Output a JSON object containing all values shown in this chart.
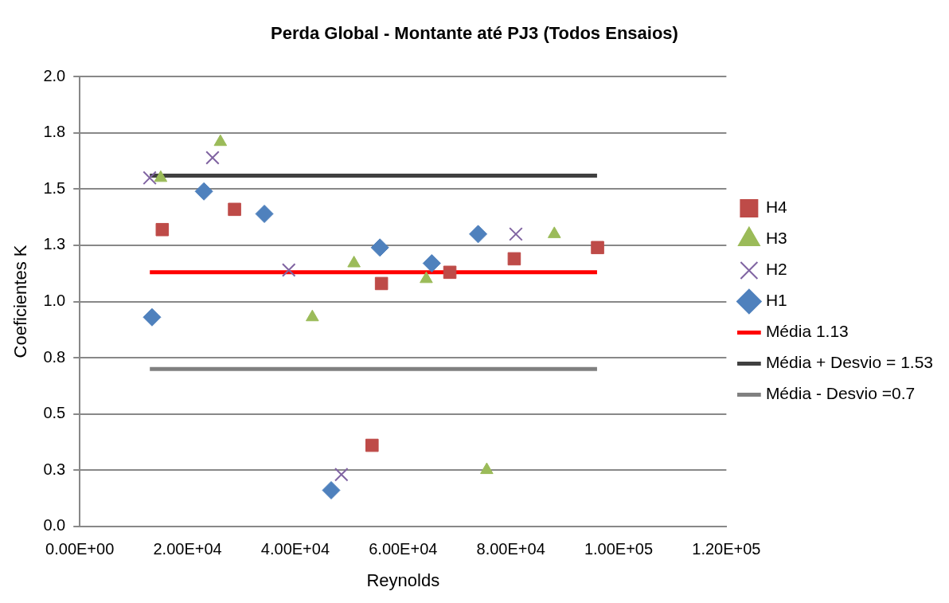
{
  "chart_data": {
    "type": "scatter",
    "title": "Perda Global - Montante até PJ3 (Todos Ensaios)",
    "xlabel": "Reynolds",
    "ylabel": "Coeficientes K",
    "xlim": [
      0,
      120000
    ],
    "xticks": [
      {
        "value": 0,
        "label": "0.00E+00"
      },
      {
        "value": 20000,
        "label": "2.00E+04"
      },
      {
        "value": 40000,
        "label": "4.00E+04"
      },
      {
        "value": 60000,
        "label": "6.00E+04"
      },
      {
        "value": 80000,
        "label": "8.00E+04"
      },
      {
        "value": 100000,
        "label": "1.00E+05"
      },
      {
        "value": 120000,
        "label": "1.20E+05"
      }
    ],
    "ylim": [
      0,
      2
    ],
    "yticks": [
      {
        "value": 0,
        "label": "0.0"
      },
      {
        "value": 0.25,
        "label": "0.3"
      },
      {
        "value": 0.5,
        "label": "0.5"
      },
      {
        "value": 0.75,
        "label": "0.8"
      },
      {
        "value": 1,
        "label": "1.0"
      },
      {
        "value": 1.25,
        "label": "1.3"
      },
      {
        "value": 1.5,
        "label": "1.5"
      },
      {
        "value": 1.75,
        "label": "1.8"
      },
      {
        "value": 2,
        "label": "2.0"
      }
    ],
    "grid": "y",
    "legend": "right",
    "series": [
      {
        "name": "H4",
        "color": "#be4b48",
        "marker": "square",
        "x": [
          15310,
          28720,
          55990,
          54240,
          68680,
          80630,
          96090
        ],
        "values": [
          1.32,
          1.41,
          1.08,
          0.36,
          1.13,
          1.19,
          1.24
        ]
      },
      {
        "name": "H3",
        "color": "#9bbb59",
        "marker": "triangle",
        "x": [
          15020,
          26100,
          43160,
          50890,
          64300,
          75530,
          88070
        ],
        "values": [
          1.55,
          1.71,
          0.93,
          1.17,
          1.1,
          0.25,
          1.3
        ]
      },
      {
        "name": "H2",
        "color": "#8064a2",
        "marker": "cross",
        "x": [
          12980,
          24640,
          38790,
          48550,
          80930
        ],
        "values": [
          1.55,
          1.64,
          1.14,
          0.23,
          1.3
        ]
      },
      {
        "name": "H1",
        "color": "#4f81bd",
        "marker": "diamond",
        "x": [
          13410,
          23040,
          34260,
          46660,
          55700,
          65320,
          73930
        ],
        "values": [
          0.93,
          1.49,
          1.39,
          0.16,
          1.24,
          1.17,
          1.3
        ]
      },
      {
        "name": "Média 1.13",
        "type": "line",
        "color": "#ff0000",
        "marker": "none",
        "x": [
          13000,
          96000
        ],
        "values": [
          1.13,
          1.13
        ]
      },
      {
        "name": "Média + Desvio = 1.53",
        "type": "line",
        "color": "#404040",
        "marker": "none",
        "x": [
          13000,
          96000
        ],
        "values": [
          1.56,
          1.56
        ]
      },
      {
        "name": "Média - Desvio =0.7",
        "type": "line",
        "color": "#808080",
        "marker": "none",
        "x": [
          13000,
          96000
        ],
        "values": [
          0.7,
          0.7
        ]
      }
    ]
  }
}
